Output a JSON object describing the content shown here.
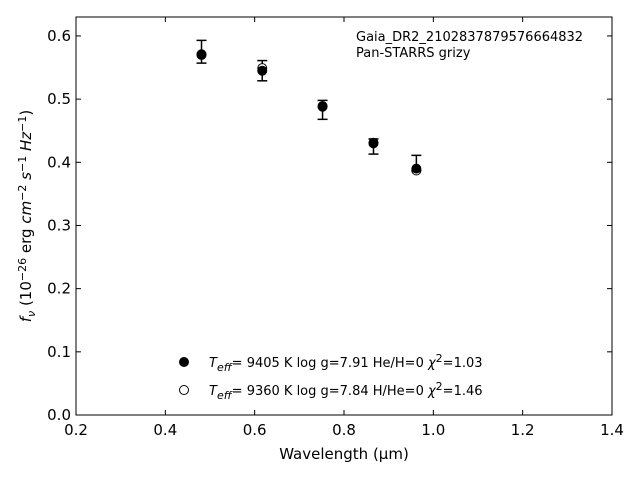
{
  "chart_data": {
    "type": "scatter",
    "xlabel": "Wavelength (μm)",
    "ylabel_parts": [
      "f",
      "ν",
      " (10",
      "−26",
      " erg ",
      "cm",
      "−2",
      " ",
      "s",
      "−1",
      " ",
      "Hz",
      "−1",
      ")"
    ],
    "xlim": [
      0.2,
      1.4
    ],
    "ylim": [
      0.0,
      0.63
    ],
    "x_ticks": [
      0.2,
      0.4,
      0.6,
      0.8,
      1.0,
      1.2,
      1.4
    ],
    "x_tick_labels": [
      "0.2",
      "0.4",
      "0.6",
      "0.8",
      "1.0",
      "1.2",
      "1.4"
    ],
    "y_ticks": [
      0.0,
      0.1,
      0.2,
      0.3,
      0.4,
      0.5,
      0.6
    ],
    "y_tick_labels": [
      "0.0",
      "0.1",
      "0.2",
      "0.3",
      "0.4",
      "0.5",
      "0.6"
    ],
    "grid": false,
    "annotations": [
      "Gaia_DR2_2102837879576664832",
      "Pan-STARRS grizy"
    ],
    "observed": {
      "x": [
        0.481,
        0.617,
        0.752,
        0.866,
        0.962
      ],
      "y": [
        0.575,
        0.545,
        0.483,
        0.425,
        0.399
      ],
      "yerr": [
        0.018,
        0.016,
        0.015,
        0.012,
        0.012
      ]
    },
    "series": [
      {
        "marker": "filled-circle",
        "legend_text": [
          "T",
          "eff",
          "=  9405 K  log g=7.91  He/H=0  ",
          "χ",
          "2",
          "=1.03"
        ],
        "x": [
          0.481,
          0.617,
          0.752,
          0.866,
          0.962
        ],
        "y": [
          0.57,
          0.545,
          0.488,
          0.43,
          0.39
        ]
      },
      {
        "marker": "open-circle",
        "legend_text": [
          "T",
          "eff",
          "=  9360 K  log g=7.84  H/He=0  ",
          "χ",
          "2",
          "=1.46"
        ],
        "x": [
          0.481,
          0.617,
          0.752,
          0.866,
          0.962
        ],
        "y": [
          0.571,
          0.549,
          0.489,
          0.431,
          0.387
        ]
      }
    ]
  }
}
